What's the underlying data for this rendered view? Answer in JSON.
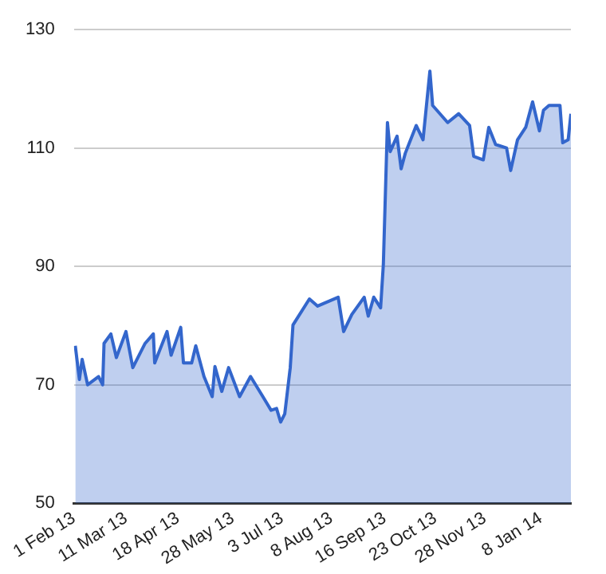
{
  "chart_data": {
    "type": "area",
    "x": [
      "2013-02-02",
      "2013-02-05",
      "2013-02-07",
      "2013-02-11",
      "2013-02-19",
      "2013-02-22",
      "2013-02-23",
      "2013-02-28",
      "2013-03-04",
      "2013-03-11",
      "2013-03-16",
      "2013-03-25",
      "2013-03-31",
      "2013-04-01",
      "2013-04-10",
      "2013-04-13",
      "2013-04-20",
      "2013-04-22",
      "2013-04-28",
      "2013-05-01",
      "2013-05-07",
      "2013-05-13",
      "2013-05-15",
      "2013-05-20",
      "2013-05-25",
      "2013-06-02",
      "2013-06-10",
      "2013-06-19",
      "2013-06-25",
      "2013-06-29",
      "2013-07-02",
      "2013-07-05",
      "2013-07-09",
      "2013-07-11",
      "2013-07-23",
      "2013-07-29",
      "2013-08-13",
      "2013-08-17",
      "2013-08-23",
      "2013-09-01",
      "2013-09-04",
      "2013-09-08",
      "2013-09-13",
      "2013-09-15",
      "2013-09-18",
      "2013-09-20",
      "2013-09-25",
      "2013-09-28",
      "2013-10-01",
      "2013-10-09",
      "2013-10-14",
      "2013-10-19",
      "2013-10-21",
      "2013-11-01",
      "2013-11-09",
      "2013-11-17",
      "2013-11-20",
      "2013-11-27",
      "2013-12-01",
      "2013-12-06",
      "2013-12-14",
      "2013-12-17",
      "2013-12-22",
      "2013-12-28",
      "2014-01-02",
      "2014-01-07",
      "2014-01-10",
      "2014-01-14",
      "2014-01-22",
      "2014-01-24",
      "2014-01-28",
      "2014-01-30"
    ],
    "series": [
      {
        "color": "#3366cc",
        "values": [
          76.6,
          70.9,
          74.3,
          70,
          71.4,
          70,
          77,
          78.6,
          74.6,
          79,
          72.9,
          77,
          78.6,
          73.7,
          79,
          75,
          79.7,
          73.7,
          73.7,
          76.6,
          71.4,
          68,
          73.1,
          68.9,
          72.9,
          68,
          71.4,
          68,
          65.7,
          66,
          63.7,
          65.1,
          72.9,
          80.1,
          84.5,
          83.3,
          84.8,
          79,
          81.9,
          84.8,
          81.6,
          84.8,
          83,
          90.3,
          114.3,
          109.4,
          112,
          106.5,
          109.1,
          113.8,
          111.4,
          123,
          117.2,
          114.3,
          115.8,
          113.8,
          108.6,
          108,
          113.5,
          110.6,
          110,
          106.2,
          111.4,
          113.5,
          117.8,
          112.9,
          116.4,
          117.2,
          117.2,
          110.9,
          111.4,
          115.8
        ]
      }
    ],
    "xlim": [
      "2013-02-01",
      "2014-01-30"
    ],
    "xticks": [
      {
        "value": "2013-02-01",
        "label": "1 Feb 13"
      },
      {
        "value": "2013-03-11",
        "label": "11 Mar 13"
      },
      {
        "value": "2013-04-18",
        "label": "18 Apr 13"
      },
      {
        "value": "2013-05-28",
        "label": "28 May 13"
      },
      {
        "value": "2013-07-03",
        "label": "3 Jul 13"
      },
      {
        "value": "2013-08-08",
        "label": "8 Aug 13"
      },
      {
        "value": "2013-09-16",
        "label": "16 Sep 13"
      },
      {
        "value": "2013-10-23",
        "label": "23 Oct 13"
      },
      {
        "value": "2013-11-28",
        "label": "28 Nov 13"
      },
      {
        "value": "2014-01-08",
        "label": "8 Jan 14"
      }
    ],
    "ylim": [
      50,
      130
    ],
    "yticks": [
      50,
      70,
      90,
      110,
      130
    ],
    "grid": "y"
  }
}
